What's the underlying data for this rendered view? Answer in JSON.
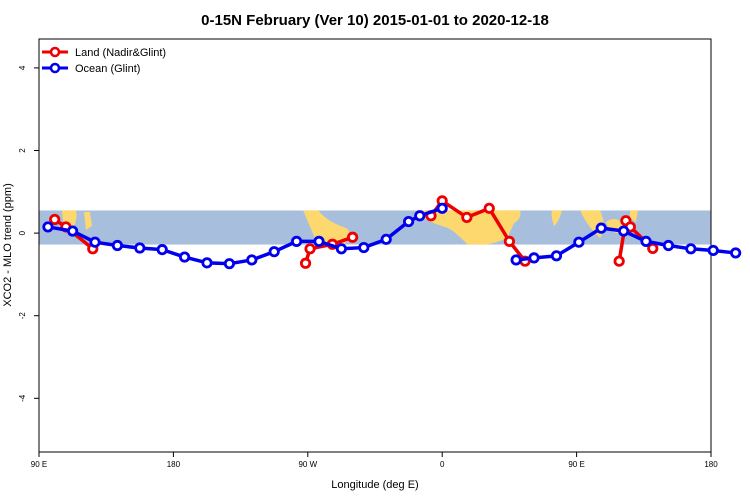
{
  "chart_data": {
    "type": "line",
    "title": "0-15N February (Ver 10)   2015-01-01 to 2020-12-18",
    "xlabel": "Longitude (deg E)",
    "ylabel": "XCO2 - MLO trend (ppm)",
    "xlim": [
      90,
      450
    ],
    "ylim": [
      -5.3,
      4.7
    ],
    "x_ticks": [
      90,
      162,
      234,
      306,
      378,
      450
    ],
    "x_tick_labels": [
      "90 E",
      "180",
      "90 W",
      "0",
      "90 E",
      "180"
    ],
    "y_ticks": [
      -4,
      -2,
      0,
      2,
      4
    ],
    "y_tick_labels": [
      "-4",
      "-2",
      "0",
      "2",
      "4"
    ],
    "grid": false,
    "legend_position": "top-left",
    "map_band": {
      "ymin": -0.28,
      "ymax": 0.55,
      "ocean_color": "#a7bedd",
      "land_color": "#fdd86f"
    },
    "series": [
      {
        "name": "Land (Nadir&Glint)",
        "color": "#ee0000",
        "segments": [
          {
            "x": [
              98.4,
              104.4,
              118.8
            ],
            "y": [
              0.33,
              0.15,
              -0.38
            ]
          },
          {
            "x": [
              232.8,
              235.2,
              247.2,
              258.0
            ],
            "y": [
              -0.73,
              -0.38,
              -0.27,
              -0.1
            ]
          },
          {
            "x": [
              300.0,
              306.0,
              319.2,
              331.2,
              342.0,
              350.4
            ],
            "y": [
              0.42,
              0.78,
              0.38,
              0.6,
              -0.2,
              -0.68
            ]
          },
          {
            "x": [
              400.8,
              404.4,
              406.8,
              418.8
            ],
            "y": [
              -0.68,
              0.3,
              0.15,
              -0.37
            ]
          }
        ]
      },
      {
        "name": "Ocean (Glint)",
        "color": "#0000ee",
        "segments": [
          {
            "x": [
              94.8,
              108.0,
              120.0,
              132.0,
              144.0,
              156.0,
              168.0,
              180.0,
              192.0,
              204.0,
              216.0,
              228.0,
              240.0,
              252.0,
              264.0,
              276.0,
              288.0,
              294.0,
              306.0
            ],
            "y": [
              0.15,
              0.05,
              -0.22,
              -0.3,
              -0.36,
              -0.4,
              -0.58,
              -0.72,
              -0.74,
              -0.65,
              -0.45,
              -0.2,
              -0.2,
              -0.38,
              -0.35,
              -0.15,
              0.28,
              0.42,
              0.6
            ]
          },
          {
            "x": [
              345.6,
              355.2,
              367.2,
              379.2,
              391.2,
              403.2,
              415.2,
              427.2,
              439.2,
              451.2,
              463.2
            ],
            "y": [
              -0.65,
              -0.6,
              -0.55,
              -0.22,
              0.12,
              0.05,
              -0.2,
              -0.3,
              -0.38,
              -0.42,
              -0.48
            ]
          }
        ]
      }
    ]
  }
}
